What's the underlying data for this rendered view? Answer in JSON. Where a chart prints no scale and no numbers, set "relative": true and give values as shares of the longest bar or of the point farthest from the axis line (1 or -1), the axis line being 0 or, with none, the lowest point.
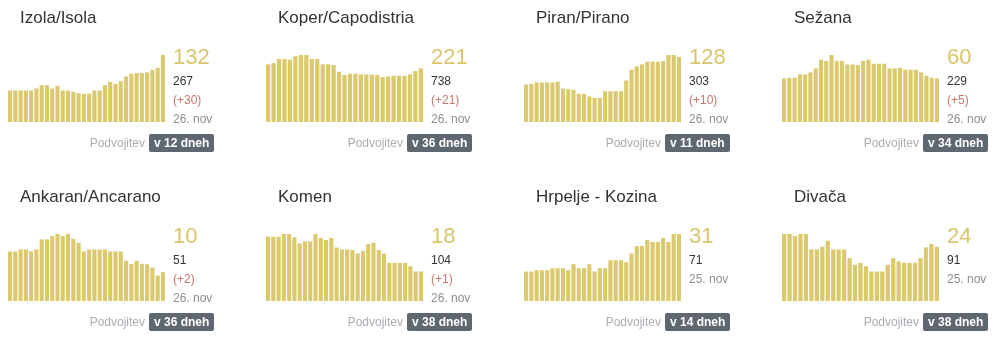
{
  "chart_data": [
    {
      "type": "bar",
      "title": "Izola/Isola",
      "relative": true,
      "color": "#dbc96e",
      "categories": [
        null,
        null,
        null,
        null,
        null,
        null,
        null,
        null,
        null,
        null,
        null,
        null,
        null,
        null,
        null,
        null,
        null,
        null,
        null,
        null,
        null,
        null,
        null,
        null,
        null,
        null,
        null,
        null,
        null,
        null
      ],
      "values": [
        0.47,
        0.47,
        0.47,
        0.47,
        0.47,
        0.5,
        0.55,
        0.55,
        0.5,
        0.54,
        0.47,
        0.47,
        0.45,
        0.43,
        0.42,
        0.42,
        0.47,
        0.47,
        0.55,
        0.6,
        0.57,
        0.61,
        0.68,
        0.72,
        0.73,
        0.73,
        0.74,
        0.78,
        0.81,
        1
      ],
      "annotations": [
        "132",
        "267",
        "(+30)",
        "26. nov",
        "Podvojitev",
        "v 12 dneh"
      ]
    },
    {
      "type": "bar",
      "title": "Koper/Capodistria",
      "relative": true,
      "color": "#dbc96e",
      "categories": [
        null,
        null,
        null,
        null,
        null,
        null,
        null,
        null,
        null,
        null,
        null,
        null,
        null,
        null,
        null,
        null,
        null,
        null,
        null,
        null,
        null,
        null,
        null,
        null,
        null,
        null,
        null,
        null,
        null
      ],
      "values": [
        0.86,
        0.88,
        0.94,
        0.94,
        0.93,
        0.98,
        1,
        1,
        0.94,
        0.94,
        0.86,
        0.86,
        0.85,
        0.75,
        0.7,
        0.72,
        0.72,
        0.71,
        0.71,
        0.71,
        0.7,
        0.67,
        0.68,
        0.69,
        0.69,
        0.69,
        0.71,
        0.76,
        0.8
      ],
      "annotations": [
        "221",
        "738",
        "(+21)",
        "26. nov",
        "Podvojitev",
        "v 36 dneh"
      ]
    },
    {
      "type": "bar",
      "title": "Piran/Pirano",
      "relative": true,
      "color": "#dbc96e",
      "categories": [
        null,
        null,
        null,
        null,
        null,
        null,
        null,
        null,
        null,
        null,
        null,
        null,
        null,
        null,
        null,
        null,
        null,
        null,
        null,
        null,
        null,
        null,
        null,
        null,
        null,
        null,
        null,
        null,
        null,
        null
      ],
      "values": [
        0.56,
        0.57,
        0.59,
        0.59,
        0.59,
        0.59,
        0.6,
        0.5,
        0.49,
        0.48,
        0.42,
        0.42,
        0.38,
        0.36,
        0.36,
        0.46,
        0.46,
        0.46,
        0.46,
        0.62,
        0.78,
        0.83,
        0.86,
        0.9,
        0.9,
        0.9,
        0.91,
        1,
        1,
        0.97
      ],
      "annotations": [
        "128",
        "303",
        "(+10)",
        "26. nov",
        "Podvojitev",
        "v 11 dneh"
      ]
    },
    {
      "type": "bar",
      "title": "Sežana",
      "relative": true,
      "color": "#dbc96e",
      "categories": [
        null,
        null,
        null,
        null,
        null,
        null,
        null,
        null,
        null,
        null,
        null,
        null,
        null,
        null,
        null,
        null,
        null,
        null,
        null,
        null,
        null,
        null,
        null,
        null,
        null,
        null,
        null,
        null,
        null,
        null
      ],
      "values": [
        0.65,
        0.66,
        0.66,
        0.71,
        0.71,
        0.74,
        0.8,
        0.93,
        0.91,
        1,
        0.91,
        0.91,
        0.86,
        0.86,
        0.85,
        0.91,
        0.93,
        0.87,
        0.87,
        0.87,
        0.8,
        0.8,
        0.81,
        0.78,
        0.78,
        0.78,
        0.74,
        0.69,
        0.66,
        0.65
      ],
      "annotations": [
        "60",
        "229",
        "(+5)",
        "26. nov",
        "Podvojitev",
        "v 34 dneh"
      ]
    },
    {
      "type": "bar",
      "title": "Ankaran/Ancarano",
      "relative": true,
      "color": "#dbc96e",
      "categories": [
        null,
        null,
        null,
        null,
        null,
        null,
        null,
        null,
        null,
        null,
        null,
        null,
        null,
        null,
        null,
        null,
        null,
        null,
        null,
        null,
        null,
        null,
        null,
        null,
        null,
        null,
        null,
        null,
        null,
        null
      ],
      "values": [
        0.74,
        0.74,
        0.77,
        0.77,
        0.74,
        0.77,
        0.92,
        0.92,
        0.97,
        1,
        0.97,
        1,
        0.93,
        0.87,
        0.74,
        0.77,
        0.77,
        0.77,
        0.77,
        0.74,
        0.74,
        0.74,
        0.6,
        0.55,
        0.6,
        0.55,
        0.55,
        0.5,
        0.38,
        0.43
      ],
      "annotations": [
        "10",
        "51",
        "(+2)",
        "26. nov",
        "Podvojitev",
        "v 36 dneh"
      ]
    },
    {
      "type": "bar",
      "title": "Komen",
      "relative": true,
      "color": "#dbc96e",
      "categories": [
        null,
        null,
        null,
        null,
        null,
        null,
        null,
        null,
        null,
        null,
        null,
        null,
        null,
        null,
        null,
        null,
        null,
        null,
        null,
        null,
        null,
        null,
        null,
        null,
        null,
        null,
        null,
        null,
        null,
        null
      ],
      "values": [
        0.96,
        0.96,
        0.96,
        1,
        1,
        0.95,
        0.86,
        0.89,
        0.89,
        1,
        0.94,
        0.91,
        0.94,
        0.8,
        0.77,
        0.77,
        0.76,
        0.71,
        0.75,
        0.85,
        0.87,
        0.76,
        0.71,
        0.57,
        0.57,
        0.57,
        0.57,
        0.52,
        0.44,
        0.44
      ],
      "annotations": [
        "18",
        "104",
        "(+1)",
        "26. nov",
        "Podvojitev",
        "v 38 dneh"
      ]
    },
    {
      "type": "bar",
      "title": "Hrpelje - Kozina",
      "relative": true,
      "color": "#dbc96e",
      "categories": [
        null,
        null,
        null,
        null,
        null,
        null,
        null,
        null,
        null,
        null,
        null,
        null,
        null,
        null,
        null,
        null,
        null,
        null,
        null,
        null,
        null,
        null,
        null,
        null,
        null,
        null,
        null,
        null,
        null,
        null
      ],
      "values": [
        0.44,
        0.44,
        0.46,
        0.46,
        0.46,
        0.49,
        0.49,
        0.49,
        0.46,
        0.55,
        0.49,
        0.49,
        0.55,
        0.44,
        0.49,
        0.49,
        0.61,
        0.61,
        0.61,
        0.58,
        0.71,
        0.82,
        0.82,
        0.91,
        0.88,
        0.88,
        0.94,
        0.88,
        1,
        1
      ],
      "annotations": [
        "31",
        "71",
        "25. nov",
        "Podvojitev",
        "v 14 dneh"
      ]
    },
    {
      "type": "bar",
      "title": "Divača",
      "relative": true,
      "color": "#dbc96e",
      "categories": [
        null,
        null,
        null,
        null,
        null,
        null,
        null,
        null,
        null,
        null,
        null,
        null,
        null,
        null,
        null,
        null,
        null,
        null,
        null,
        null,
        null,
        null,
        null,
        null,
        null,
        null,
        null,
        null,
        null
      ],
      "values": [
        1,
        1,
        0.97,
        1,
        1,
        0.77,
        0.77,
        0.81,
        0.9,
        0.77,
        0.77,
        0.77,
        0.64,
        0.54,
        0.57,
        0.52,
        0.44,
        0.44,
        0.44,
        0.54,
        0.64,
        0.59,
        0.57,
        0.57,
        0.57,
        0.64,
        0.8,
        0.85,
        0.81
      ],
      "annotations": [
        "24",
        "91",
        "25. nov",
        "Podvojitev",
        "v 38 dneh"
      ]
    }
  ]
}
